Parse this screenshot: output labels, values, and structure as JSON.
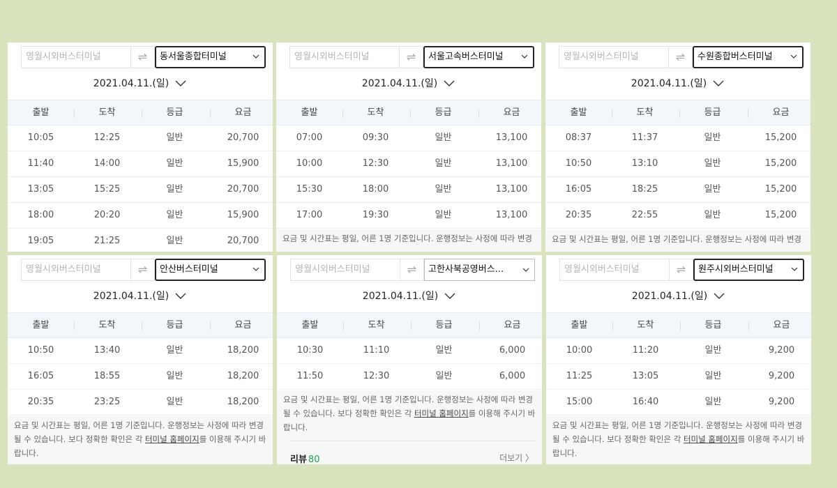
{
  "panels": [
    {
      "origin_placeholder": "영월시외버스터미널",
      "swap_glyph": "⇌",
      "destination": "동서울종합터미널",
      "date": "2021.04.11.(일)",
      "headers": [
        "출발",
        "도착",
        "등급",
        "요금"
      ],
      "rows": [
        [
          "10:05",
          "12:25",
          "일반",
          "20,700"
        ],
        [
          "11:40",
          "14:00",
          "일반",
          "15,900"
        ],
        [
          "13:05",
          "15:25",
          "일반",
          "20,700"
        ],
        [
          "18:00",
          "20:20",
          "일반",
          "15,900"
        ],
        [
          "19:05",
          "21:25",
          "일반",
          "20,700"
        ]
      ]
    },
    {
      "origin_placeholder": "영월시외버스터미널",
      "swap_glyph": "⇌",
      "destination": "서울고속버스터미널",
      "date": "2021.04.11.(일)",
      "headers": [
        "출발",
        "도착",
        "등급",
        "요금"
      ],
      "rows": [
        [
          "07:00",
          "09:30",
          "일반",
          "13,100"
        ],
        [
          "10:00",
          "12:30",
          "일반",
          "13,100"
        ],
        [
          "15:30",
          "18:00",
          "일반",
          "13,100"
        ],
        [
          "17:00",
          "19:30",
          "일반",
          "13,100"
        ]
      ],
      "note_lines": [
        "요금 및 시간표는 평일, 어른 1명 기준입니다. 운행정보는 사정에 따라 변경"
      ]
    },
    {
      "origin_placeholder": "영월시외버스터미널",
      "swap_glyph": "⇌",
      "destination": "수원종합버스터미널",
      "date": "2021.04.11.(일)",
      "headers": [
        "출발",
        "도착",
        "등급",
        "요금"
      ],
      "rows": [
        [
          "08:37",
          "11:37",
          "일반",
          "15,200"
        ],
        [
          "10:50",
          "13:10",
          "일반",
          "15,200"
        ],
        [
          "16:05",
          "18:25",
          "일반",
          "15,200"
        ],
        [
          "20:35",
          "22:55",
          "일반",
          "15,200"
        ]
      ],
      "note_lines": [
        "요금 및 시간표는 평일, 어른 1명 기준입니다. 운행정보는 사정에 따라 변경"
      ]
    },
    {
      "origin_placeholder": "영월시외버스터미널",
      "swap_glyph": "⇌",
      "destination": "안산버스터미널",
      "date": "2021.04.11.(일)",
      "headers": [
        "출발",
        "도착",
        "등급",
        "요금"
      ],
      "rows": [
        [
          "10:50",
          "13:40",
          "일반",
          "18,200"
        ],
        [
          "16:05",
          "18:55",
          "일반",
          "18,200"
        ],
        [
          "20:35",
          "23:25",
          "일반",
          "18,200"
        ]
      ],
      "note_lines": [
        "요금 및 시간표는 평일, 어른 1명 기준입니다. 운행정보는 사정에 따라 변경",
        "될 수 있습니다. 보다 정확한 확인은 각 ",
        "를 이용해 주시기 바",
        "랍니다."
      ],
      "note_link": "터미널 홈페이지"
    },
    {
      "origin_placeholder": "영월시외버스터미널",
      "swap_glyph": "⇌",
      "destination": "고한사북공영버스...",
      "date": "2021.04.11.(일)",
      "headers": [
        "출발",
        "도착",
        "등급",
        "요금"
      ],
      "rows": [
        [
          "10:30",
          "11:10",
          "일반",
          "6,000"
        ],
        [
          "11:50",
          "12:30",
          "일반",
          "6,000"
        ]
      ],
      "note_lines": [
        "요금 및 시간표는 평일, 어른 1명 기준입니다. 운행정보는 사정에 따라 변경",
        "될 수 있습니다. 보다 정확한 확인은 각 ",
        "를 이용해 주시기 바",
        "랍니다."
      ],
      "note_link": "터미널 홈페이지",
      "review_label": "리뷰",
      "review_count": "80",
      "more_label": "더보기 〉"
    },
    {
      "origin_placeholder": "영월시외버스터미널",
      "swap_glyph": "⇌",
      "destination": "원주시외버스터미널",
      "date": "2021.04.11.(일)",
      "headers": [
        "출발",
        "도착",
        "등급",
        "요금"
      ],
      "rows": [
        [
          "10:00",
          "11:20",
          "일반",
          "9,200"
        ],
        [
          "11:25",
          "13:05",
          "일반",
          "9,200"
        ],
        [
          "15:00",
          "16:40",
          "일반",
          "9,200"
        ]
      ],
      "note_lines": [
        "요금 및 시간표는 평일, 어른 1명 기준입니다. 운행정보는 사정에 따라 변경",
        "될 수 있습니다. 보다 정확한 확인은 각 ",
        "를 이용해 주시기 바",
        "랍니다."
      ],
      "note_link": "터미널 홈페이지"
    }
  ]
}
